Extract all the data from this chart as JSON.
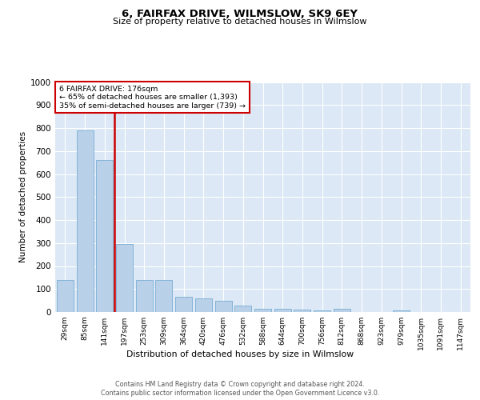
{
  "title1": "6, FAIRFAX DRIVE, WILMSLOW, SK9 6EY",
  "title2": "Size of property relative to detached houses in Wilmslow",
  "xlabel": "Distribution of detached houses by size in Wilmslow",
  "ylabel": "Number of detached properties",
  "annotation_line1": "6 FAIRFAX DRIVE: 176sqm",
  "annotation_line2": "← 65% of detached houses are smaller (1,393)",
  "annotation_line3": "35% of semi-detached houses are larger (739) →",
  "bar_color": "#b8d0e8",
  "bar_edge_color": "#7aadd4",
  "vline_color": "#cc0000",
  "background_color": "#dce8f5",
  "grid_color": "#ffffff",
  "categories": [
    "29sqm",
    "85sqm",
    "141sqm",
    "197sqm",
    "253sqm",
    "309sqm",
    "364sqm",
    "420sqm",
    "476sqm",
    "532sqm",
    "588sqm",
    "644sqm",
    "700sqm",
    "756sqm",
    "812sqm",
    "868sqm",
    "923sqm",
    "979sqm",
    "1035sqm",
    "1091sqm",
    "1147sqm"
  ],
  "values": [
    140,
    790,
    660,
    295,
    140,
    140,
    65,
    60,
    50,
    28,
    15,
    13,
    10,
    8,
    13,
    0,
    0,
    8,
    0,
    0,
    0
  ],
  "ylim": [
    0,
    1000
  ],
  "yticks": [
    0,
    100,
    200,
    300,
    400,
    500,
    600,
    700,
    800,
    900,
    1000
  ],
  "footer1": "Contains HM Land Registry data © Crown copyright and database right 2024.",
  "footer2": "Contains public sector information licensed under the Open Government Licence v3.0."
}
